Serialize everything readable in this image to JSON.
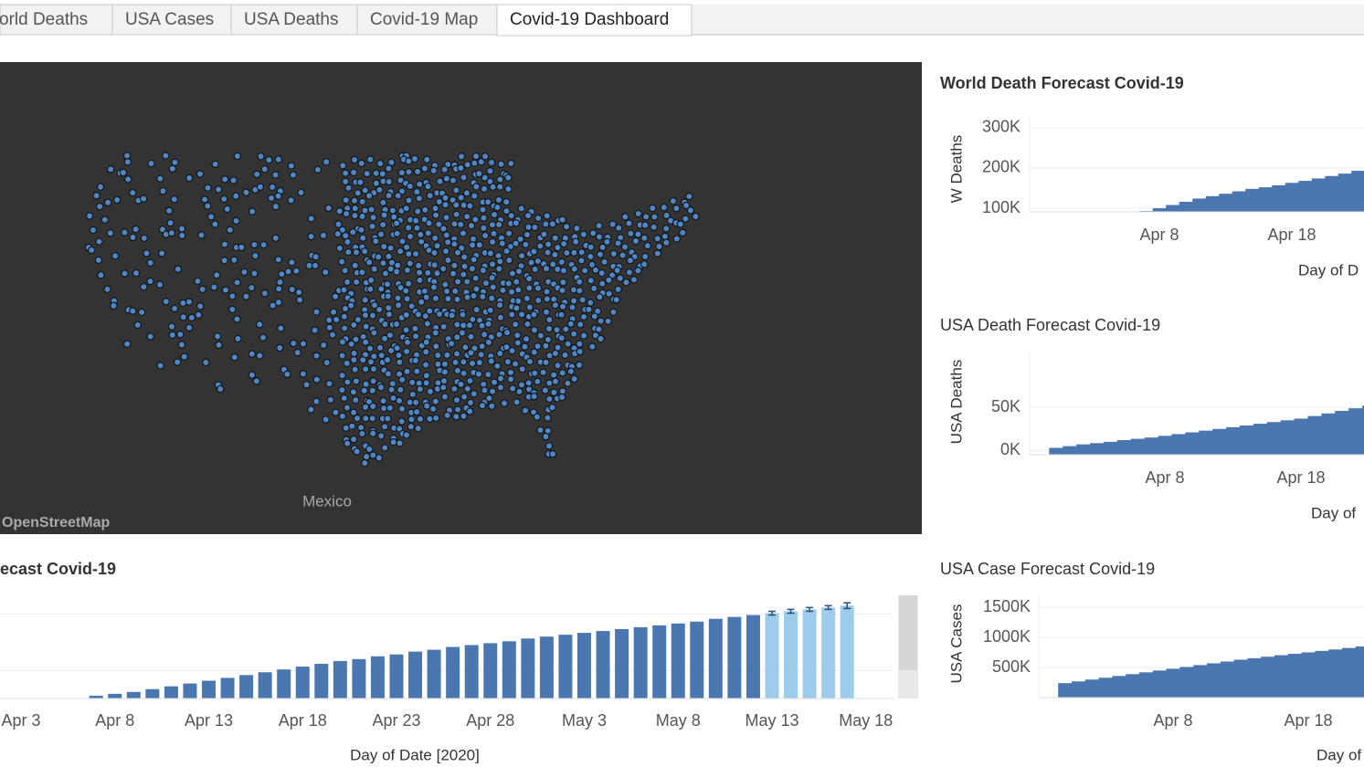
{
  "tabs": [
    "orld Deaths",
    "USA Cases",
    "USA Deaths",
    "Covid-19 Map",
    "Covid-19 Dashboard"
  ],
  "map": {
    "place_label": "Mexico",
    "attribution": "OpenStreetMap"
  },
  "chart_data": [
    {
      "type": "bar",
      "title": "ecast Covid-19",
      "x_label": "Day of Date [2020]",
      "categories": [
        "Apr 3",
        null,
        null,
        null,
        null,
        "Apr 8",
        null,
        null,
        null,
        null,
        "Apr 13",
        null,
        null,
        null,
        null,
        "Apr 18",
        null,
        null,
        null,
        null,
        "Apr 23",
        null,
        null,
        null,
        null,
        "Apr 28",
        null,
        null,
        null,
        null,
        "May 3",
        null,
        null,
        null,
        null,
        "May 8",
        null,
        null,
        null,
        null,
        "May 13",
        null,
        null,
        null,
        null,
        "May 18"
      ],
      "values": [
        null,
        null,
        null,
        null,
        3,
        5,
        7,
        10,
        13,
        16,
        19,
        22,
        25,
        28,
        31,
        34,
        37,
        40,
        42,
        45,
        47,
        50,
        52,
        55,
        57,
        59,
        61,
        64,
        66,
        68,
        70,
        72,
        74,
        76,
        78,
        80,
        82,
        85,
        87,
        89,
        null,
        null,
        null,
        null,
        null,
        null
      ],
      "forecast_values": [
        null,
        null,
        null,
        null,
        null,
        null,
        null,
        null,
        null,
        null,
        null,
        null,
        null,
        null,
        null,
        null,
        null,
        null,
        null,
        null,
        null,
        null,
        null,
        null,
        null,
        null,
        null,
        null,
        null,
        null,
        null,
        null,
        null,
        null,
        null,
        null,
        null,
        null,
        null,
        null,
        91,
        93,
        95,
        97,
        99,
        null
      ],
      "errors": [
        null,
        null,
        null,
        null,
        null,
        null,
        null,
        null,
        null,
        null,
        null,
        null,
        null,
        null,
        null,
        null,
        null,
        null,
        null,
        null,
        null,
        null,
        null,
        null,
        null,
        null,
        null,
        null,
        null,
        null,
        null,
        null,
        null,
        null,
        null,
        null,
        null,
        null,
        null,
        null,
        2,
        2,
        2,
        2,
        3,
        null
      ],
      "ylim": [
        0,
        110
      ],
      "color": "#4a77b0",
      "forecast_color": "#9ccbec"
    },
    {
      "type": "area",
      "title": "World Death Forecast Covid-19",
      "y_label": "W Deaths",
      "x_label": "Day of D",
      "categories": [
        null,
        "Apr 8",
        null,
        null,
        null,
        null,
        null,
        null,
        null,
        null,
        null,
        "Apr 18",
        null,
        null,
        null,
        null,
        null
      ],
      "values": [
        93000,
        100000,
        108000,
        116000,
        124000,
        130000,
        136000,
        142000,
        148000,
        152000,
        157000,
        163000,
        168000,
        174000,
        180000,
        186000,
        193000
      ],
      "ylim": [
        91000,
        327000
      ],
      "yticks": [
        {
          "value": 300000,
          "label": "300K"
        },
        {
          "value": 200000,
          "label": "200K"
        },
        {
          "value": 100000,
          "label": "100K"
        }
      ],
      "color": "#4a77b0"
    },
    {
      "type": "area",
      "title": "USA Death Forecast Covid-19",
      "y_label": "USA Deaths",
      "x_label": "Day of",
      "categories": [
        null,
        null,
        null,
        null,
        null,
        null,
        null,
        null,
        "Apr 8",
        null,
        null,
        null,
        null,
        null,
        null,
        null,
        null,
        null,
        "Apr 18",
        null,
        null,
        null,
        null,
        null
      ],
      "values": [
        3000,
        5000,
        7000,
        8500,
        10000,
        12000,
        13500,
        15000,
        17000,
        19000,
        21000,
        23000,
        25000,
        27000,
        29000,
        31000,
        33000,
        35000,
        37000,
        40000,
        43000,
        46000,
        49000,
        52000
      ],
      "ylim": [
        -5000,
        115000
      ],
      "yticks": [
        {
          "value": 50000,
          "label": "50K"
        },
        {
          "value": 0,
          "label": "0K"
        }
      ],
      "color": "#4a77b0"
    },
    {
      "type": "area",
      "title": "USA Case Forecast Covid-19",
      "y_label": "USA Cases",
      "x_label": "Day of",
      "categories": [
        null,
        null,
        null,
        null,
        null,
        null,
        null,
        null,
        "Apr 8",
        null,
        null,
        null,
        null,
        null,
        null,
        null,
        null,
        null,
        "Apr 18",
        null,
        null,
        null,
        null,
        null
      ],
      "values": [
        240000,
        270000,
        300000,
        330000,
        360000,
        390000,
        420000,
        450000,
        480000,
        510000,
        540000,
        570000,
        600000,
        630000,
        655000,
        680000,
        705000,
        728000,
        752000,
        776000,
        800000,
        825000,
        850000,
        880000
      ],
      "ylim": [
        0,
        1700000
      ],
      "yticks": [
        {
          "value": 1500000,
          "label": "1500K"
        },
        {
          "value": 1000000,
          "label": "1000K"
        },
        {
          "value": 500000,
          "label": "500K"
        }
      ],
      "color": "#4a77b0"
    }
  ]
}
